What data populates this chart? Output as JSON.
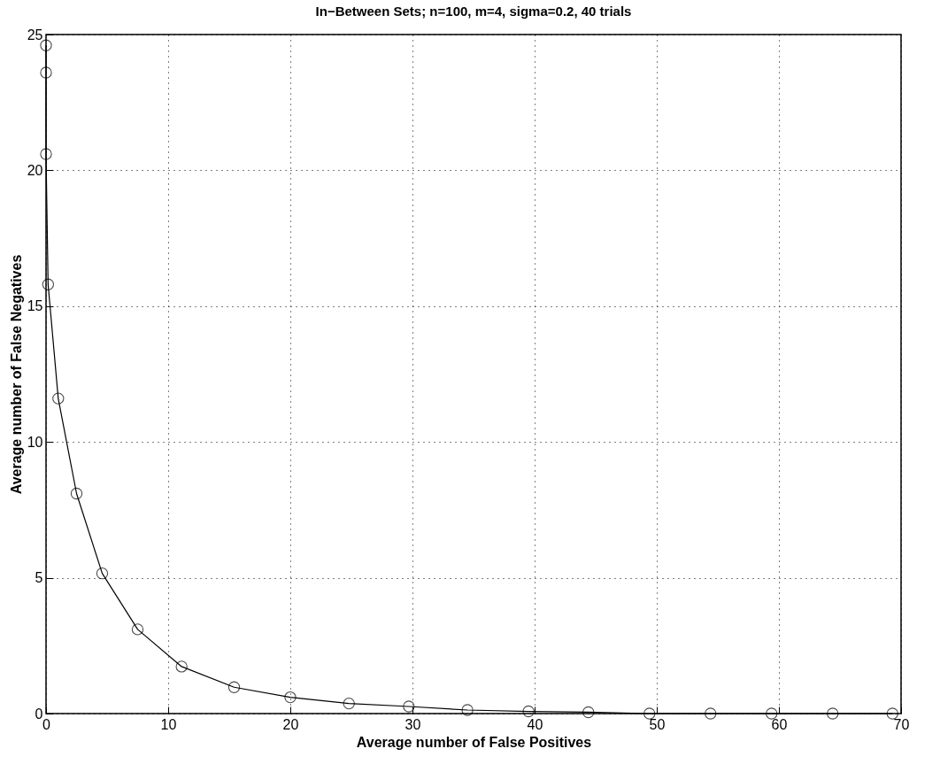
{
  "chart_data": {
    "type": "line",
    "title": "In−Between Sets; n=100, m=4, sigma=0.2, 40 trials",
    "xlabel": "Average number of False Positives",
    "ylabel": "Average number of False Negatives",
    "x": [
      0,
      0,
      0,
      0.17,
      1.0,
      2.5,
      4.6,
      7.5,
      11.1,
      15.4,
      20.0,
      24.8,
      29.7,
      34.5,
      39.5,
      44.4,
      49.4,
      54.4,
      59.4,
      64.4,
      69.3
    ],
    "series": [
      {
        "color": "#000000",
        "values": [
          24.6,
          23.6,
          20.6,
          15.8,
          11.6,
          8.1,
          5.16,
          3.1,
          1.73,
          0.97,
          0.6,
          0.37,
          0.26,
          0.13,
          0.08,
          0.05,
          0,
          0,
          0,
          0,
          0
        ]
      }
    ],
    "xlim": [
      0,
      70
    ],
    "xticks": [
      0,
      10,
      20,
      30,
      40,
      50,
      60,
      70
    ],
    "ylim": [
      0,
      25
    ],
    "yticks": [
      0,
      5,
      10,
      15,
      20,
      25
    ],
    "grid": true,
    "marker": "circle",
    "line_style": "solid"
  }
}
